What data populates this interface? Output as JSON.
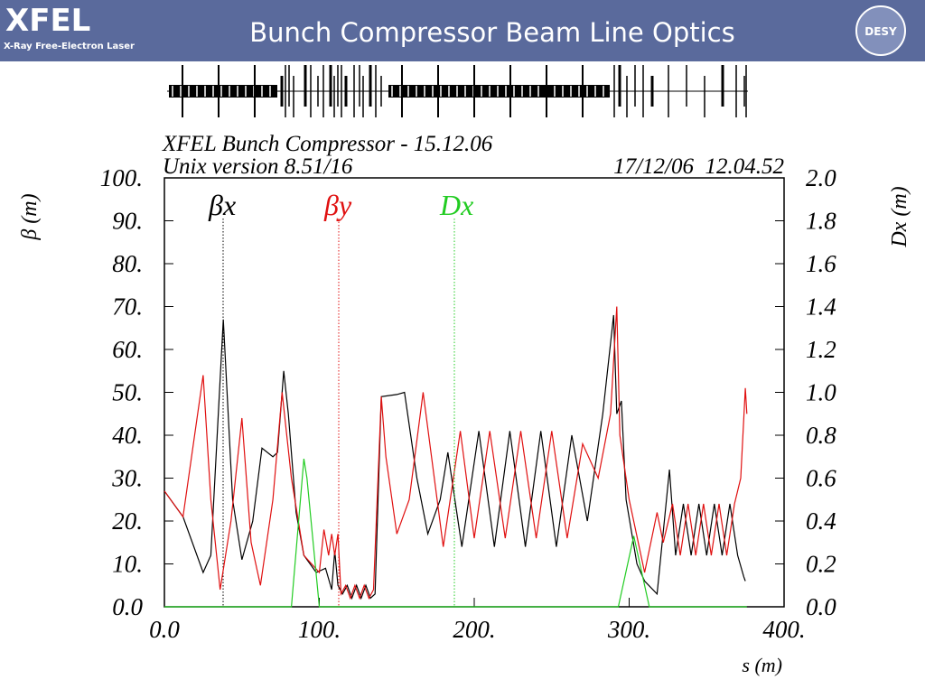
{
  "header": {
    "logo": "XFEL",
    "logo_subtitle": "X-Ray Free-Electron Laser",
    "title": "Bunch Compressor Beam Line Optics",
    "desy": "DESY"
  },
  "chart_data": {
    "type": "line",
    "title": "XFEL Bunch Compressor - 15.12.06",
    "subtitle": "Unix version 8.51/16",
    "timestamp": "17/12/06  12.04.52",
    "xlabel": "s (m)",
    "ylabel": "β (m)",
    "y2label": "Dx (m)",
    "xlim": [
      0,
      400
    ],
    "xticks": [
      {
        "value": 0,
        "label": "0.0"
      },
      {
        "value": 100,
        "label": "100."
      },
      {
        "value": 200,
        "label": "200."
      },
      {
        "value": 300,
        "label": "300."
      },
      {
        "value": 400,
        "label": "400."
      }
    ],
    "ylim": [
      0,
      100
    ],
    "yticks": [
      {
        "value": 0,
        "label": "0.0"
      },
      {
        "value": 10,
        "label": "10."
      },
      {
        "value": 20,
        "label": "20."
      },
      {
        "value": 30,
        "label": "30."
      },
      {
        "value": 40,
        "label": "40."
      },
      {
        "value": 50,
        "label": "50."
      },
      {
        "value": 60,
        "label": "60."
      },
      {
        "value": 70,
        "label": "70."
      },
      {
        "value": 80,
        "label": "80."
      },
      {
        "value": 90,
        "label": "90."
      },
      {
        "value": 100,
        "label": "100."
      }
    ],
    "y2lim": [
      0,
      2
    ],
    "y2ticks": [
      {
        "value": 0,
        "label": "0.0"
      },
      0.2,
      0.4,
      0.6,
      0.8,
      {
        "value": 1,
        "label": "1.0"
      },
      1.2,
      1.4,
      1.6,
      1.8,
      {
        "value": 2,
        "label": "2.0"
      }
    ],
    "series": [
      {
        "name": "βx",
        "color": "#000000",
        "x": [
          0,
          12,
          25,
          30,
          38,
          44,
          50,
          57,
          63,
          70,
          73,
          77,
          80,
          85,
          90,
          98,
          104,
          108,
          110,
          112,
          115,
          118,
          121,
          124,
          127,
          130,
          133,
          136,
          140,
          150,
          155,
          163,
          170,
          178,
          183,
          192,
          203,
          213,
          223,
          233,
          243,
          253,
          263,
          273,
          283,
          290,
          292,
          295,
          298,
          305,
          310,
          318,
          326,
          330,
          335,
          340,
          345,
          350,
          355,
          360,
          365,
          370,
          374,
          375
        ],
        "values": [
          27,
          21,
          8,
          12,
          67,
          25,
          11,
          20,
          37,
          35,
          36,
          55,
          45,
          22,
          12,
          8,
          9,
          4,
          13,
          5,
          3,
          5,
          2,
          5,
          2,
          5,
          2,
          3,
          49,
          49.5,
          50,
          30,
          17,
          25,
          36,
          14,
          41,
          14,
          41,
          14,
          41,
          14,
          40,
          20,
          45,
          68,
          45,
          48,
          25,
          10,
          6,
          3,
          32,
          12,
          24,
          12,
          24,
          12,
          24,
          12,
          24,
          12,
          7,
          6
        ]
      },
      {
        "name": "βy",
        "color": "#e01010",
        "x": [
          0,
          12,
          25,
          30,
          36,
          43,
          50,
          56,
          62,
          70,
          76,
          82,
          90,
          100,
          103,
          106,
          108,
          110,
          112,
          114,
          117,
          120,
          123,
          126,
          129,
          132,
          135,
          140,
          143,
          150,
          158,
          167,
          180,
          191,
          200,
          210,
          220,
          230,
          240,
          250,
          260,
          270,
          280,
          288,
          292,
          294,
          300,
          310,
          318,
          322,
          328,
          333,
          338,
          343,
          348,
          353,
          358,
          363,
          368,
          372,
          375,
          376
        ],
        "values": [
          27,
          21,
          54,
          25,
          4,
          20,
          44,
          15,
          5,
          25,
          50,
          30,
          12,
          8,
          18,
          12,
          17,
          12,
          17,
          3,
          5,
          2,
          5,
          2,
          5,
          2,
          4,
          49,
          35,
          17,
          25,
          50,
          14,
          41,
          16,
          41,
          16,
          41,
          16,
          41,
          16,
          38,
          30,
          45,
          70,
          40,
          25,
          8,
          22,
          15,
          24,
          12,
          24,
          12,
          24,
          12,
          24,
          12,
          24,
          30,
          51,
          45
        ]
      },
      {
        "name": "Dx",
        "color": "#22cc22",
        "axis": "y2",
        "x": [
          0,
          82,
          90,
          92,
          100,
          293,
          303,
          313,
          376
        ],
        "values": [
          0,
          0,
          0.69,
          0.6,
          0,
          0,
          0.33,
          0,
          0
        ]
      }
    ]
  }
}
